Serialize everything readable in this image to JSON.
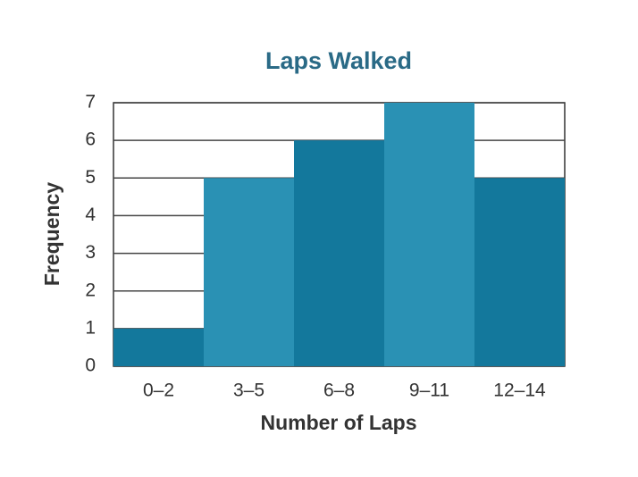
{
  "chart_data": {
    "type": "bar",
    "title": "Laps Walked",
    "x_label": "Number of Laps",
    "y_label": "Frequency",
    "categories": [
      "0–2",
      "3–5",
      "6–8",
      "9–11",
      "12–14"
    ],
    "values": [
      1,
      5,
      6,
      7,
      5
    ],
    "colors": [
      "#13789c",
      "#2a91b4",
      "#13789c",
      "#2a91b4",
      "#13789c"
    ],
    "ylim": [
      0,
      7
    ],
    "yticks": [
      0,
      1,
      2,
      3,
      4,
      5,
      6,
      7
    ],
    "grid": true
  }
}
